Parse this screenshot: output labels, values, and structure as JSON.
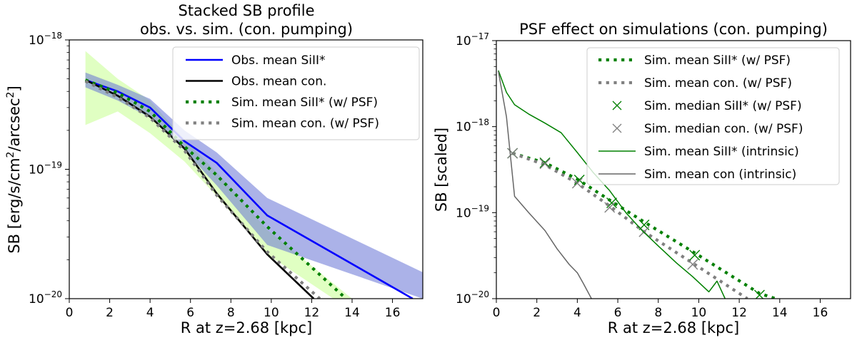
{
  "chart_data": [
    {
      "type": "line",
      "title": "Stacked SB profile\nobs. vs. sim. (con. pumping)",
      "title_lines": [
        "Stacked SB profile",
        "obs. vs. sim. (con. pumping)"
      ],
      "xlabel": "R at z=2.68 [kpc]",
      "ylabel": "SB [erg/s/cm²/arcsec²]",
      "ylabel_parts": {
        "pre": "SB [erg/s/cm",
        "sup1": "2",
        "mid": "/arcsec",
        "sup2": "2",
        "post": "]"
      },
      "xlim": [
        0,
        17.5
      ],
      "ylim": [
        1e-20,
        1e-18
      ],
      "yscale": "log",
      "xticks": [
        0,
        2,
        4,
        6,
        8,
        10,
        12,
        14,
        16
      ],
      "yticks": [
        {
          "value": 1e-20,
          "base": "10",
          "exp": "−20"
        },
        {
          "value": 1e-19,
          "base": "10",
          "exp": "−19"
        },
        {
          "value": 1e-18,
          "base": "10",
          "exp": "−18"
        }
      ],
      "legend_position": "top-right",
      "bands": [
        {
          "name": "Sim. SiII* range",
          "color": "#ccff99",
          "opacity": 0.6,
          "x": [
            0.8,
            2.4,
            4.0,
            5.7,
            7.3,
            9.8,
            14.0
          ],
          "upper": [
            8.2e-19,
            5e-19,
            3.4e-19,
            1.7e-19,
            9.5e-20,
            3.4e-20,
            1e-20
          ],
          "lower": [
            2.2e-19,
            2.8e-19,
            1.9e-19,
            1.15e-19,
            6.2e-20,
            2.2e-20,
            8e-21
          ]
        },
        {
          "name": "Obs. SiII* error",
          "color": "#6673d6",
          "opacity": 0.55,
          "x": [
            0.8,
            2.4,
            4.0,
            5.7,
            7.3,
            9.8,
            17.5
          ],
          "upper": [
            5.6e-19,
            4.5e-19,
            3.5e-19,
            2e-19,
            1.35e-19,
            6e-20,
            1.6e-20
          ],
          "lower": [
            4.3e-19,
            3.4e-19,
            2.5e-19,
            1.4e-19,
            7.5e-20,
            2.6e-20,
            1e-20
          ]
        }
      ],
      "series": [
        {
          "name": "Obs. mean SiII*",
          "legend": "Obs. mean SiII*",
          "color": "#0000ff",
          "style": "solid",
          "x": [
            0.8,
            2.4,
            4.0,
            5.7,
            7.3,
            9.8,
            17.0
          ],
          "y": [
            4.9e-19,
            4e-19,
            3e-19,
            1.65e-19,
            1.12e-19,
            4.4e-20,
            1e-20
          ]
        },
        {
          "name": "Obs. mean con.",
          "legend": "Obs. mean con.",
          "color": "#000000",
          "style": "solid",
          "x": [
            0.8,
            2.4,
            4.0,
            5.7,
            7.3,
            9.8,
            12.1
          ],
          "y": [
            4.9e-19,
            3.7e-19,
            2.55e-19,
            1.45e-19,
            6.5e-20,
            2.2e-20,
            1e-20
          ]
        },
        {
          "name": "Sim. mean SiII* (w/ PSF)",
          "legend": "Sim. mean SiII* (w/ PSF)",
          "color": "#008000",
          "style": "dotted",
          "x": [
            0.8,
            2.4,
            4.0,
            5.7,
            7.3,
            9.8,
            13.7
          ],
          "y": [
            4.9e-19,
            3.9e-19,
            2.8e-19,
            1.5e-19,
            9e-20,
            3.6e-20,
            1e-20
          ]
        },
        {
          "name": "Sim. mean con. (w/ PSF)",
          "legend": "Sim. mean con. (w/ PSF)",
          "color": "#808080",
          "style": "dotted",
          "x": [
            0.8,
            2.4,
            4.0,
            5.7,
            7.3,
            9.8,
            12.4
          ],
          "y": [
            4.8e-19,
            3.6e-19,
            2.5e-19,
            1.4e-19,
            6.3e-20,
            2.3e-20,
            1e-20
          ]
        }
      ]
    },
    {
      "type": "line",
      "title": "PSF effect on simulations (con. pumping)",
      "title_lines": [
        "PSF effect on simulations (con. pumping)"
      ],
      "xlabel": "R at z=2.68 [kpc]",
      "ylabel": "SB [scaled]",
      "xlim": [
        0,
        17.5
      ],
      "ylim": [
        1e-20,
        1e-17
      ],
      "yscale": "log",
      "xticks": [
        0,
        2,
        4,
        6,
        8,
        10,
        12,
        14,
        16
      ],
      "yticks": [
        {
          "value": 1e-20,
          "base": "10",
          "exp": "−20"
        },
        {
          "value": 1e-19,
          "base": "10",
          "exp": "−19"
        },
        {
          "value": 1e-18,
          "base": "10",
          "exp": "−18"
        },
        {
          "value": 1e-17,
          "base": "10",
          "exp": "−17"
        }
      ],
      "legend_position": "top-right",
      "series": [
        {
          "name": "Sim. mean SiII* (w/ PSF)",
          "legend": "Sim. mean SiII* (w/ PSF)",
          "color": "#008000",
          "style": "dotted",
          "x": [
            0.8,
            2.4,
            4.0,
            5.7,
            7.3,
            9.8,
            13.0,
            13.8
          ],
          "y": [
            4.9e-19,
            3.8e-19,
            2.45e-19,
            1.35e-19,
            7.8e-20,
            3.4e-20,
            1.15e-20,
            1e-20
          ]
        },
        {
          "name": "Sim. mean con. (w/ PSF)",
          "legend": "Sim. mean con. (w/ PSF)",
          "color": "#808080",
          "style": "dotted",
          "x": [
            0.8,
            2.4,
            4.0,
            5.7,
            7.3,
            9.8,
            12.4
          ],
          "y": [
            4.9e-19,
            3.6e-19,
            2.2e-19,
            1.15e-19,
            6e-20,
            2.5e-20,
            1e-20
          ]
        },
        {
          "name": "Sim. median SiII* (w/ PSF)",
          "legend": "Sim. median SiII* (w/ PSF)",
          "color": "#008000",
          "style": "marker-x",
          "x": [
            0.8,
            2.4,
            4.1,
            5.7,
            7.3,
            9.8,
            13.0
          ],
          "y": [
            4.9e-19,
            3.8e-19,
            2.4e-19,
            1.3e-19,
            7.2e-20,
            3.2e-20,
            1.1e-20
          ]
        },
        {
          "name": "Sim. median con. (w/ PSF)",
          "legend": "Sim. median con. (w/ PSF)",
          "color": "#808080",
          "style": "marker-x",
          "x": [
            0.8,
            2.4,
            4.0,
            5.6,
            7.3,
            9.7
          ],
          "y": [
            4.9e-19,
            3.7e-19,
            2.2e-19,
            1.15e-19,
            6e-20,
            2.5e-20
          ]
        },
        {
          "name": "Sim. mean SiII* (intrinsic)",
          "legend": "Sim. mean SiII* (intrinsic)",
          "color": "#008000",
          "style": "thin",
          "x": [
            0.1,
            0.5,
            0.9,
            1.6,
            2.4,
            3.2,
            4.0,
            4.8,
            5.6,
            6.4,
            7.2,
            8.0,
            8.9,
            9.7,
            10.5,
            10.9,
            11.3
          ],
          "y": [
            4.5e-18,
            2.5e-18,
            1.8e-18,
            1.4e-18,
            1.1e-18,
            8.5e-19,
            5e-19,
            2.9e-19,
            1.8e-19,
            1e-19,
            6.2e-20,
            4.1e-20,
            2.6e-20,
            1.8e-20,
            1.2e-20,
            1.6e-20,
            1e-20
          ]
        },
        {
          "name": "Sim. mean con (intrinsic)",
          "legend": "Sim. mean con (intrinsic)",
          "color": "#666666",
          "style": "thin",
          "x": [
            0.1,
            0.5,
            0.9,
            1.6,
            2.4,
            3.0,
            3.6,
            4.0,
            4.3,
            4.7
          ],
          "y": [
            4.4e-18,
            1.3e-18,
            1.55e-19,
            1e-19,
            6.2e-20,
            3.8e-20,
            2.5e-20,
            2e-20,
            1.5e-20,
            1e-20
          ]
        }
      ]
    }
  ]
}
